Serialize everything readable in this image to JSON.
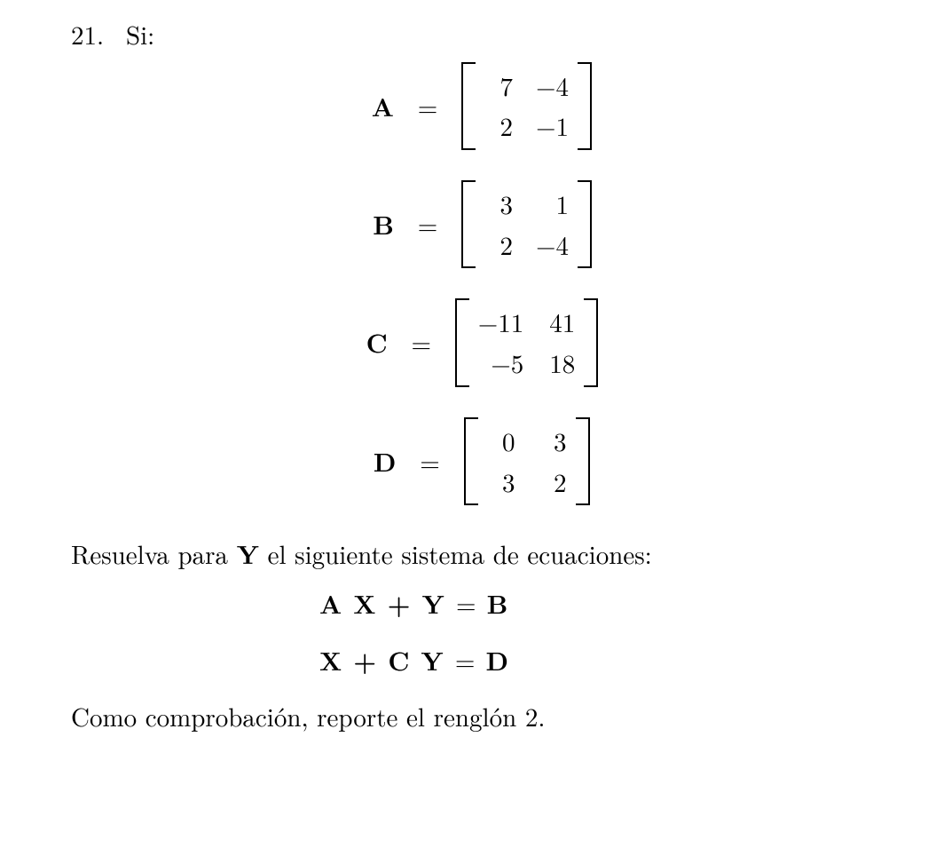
{
  "problem": {
    "number": "21.",
    "lead": "Si:"
  },
  "matrices": {
    "A": {
      "name": "A",
      "cells": [
        "7",
        "−4",
        "2",
        "−1"
      ]
    },
    "B": {
      "name": "B",
      "cells": [
        "3",
        "1",
        "2",
        "−4"
      ]
    },
    "C": {
      "name": "C",
      "cells": [
        "−11",
        "41",
        "−5",
        "18"
      ]
    },
    "D": {
      "name": "D",
      "cells": [
        "0",
        "3",
        "3",
        "2"
      ]
    }
  },
  "equals": "=",
  "text": {
    "solve_for": "Resuelva para ",
    "Y": "Y",
    "solve_after": " el siguiente sistema de ecuaciones:",
    "eq1_lhs": "A X + Y",
    "eq1_rhs": "B",
    "eq2_lhs": "X + C Y",
    "eq2_rhs": "D",
    "check": "Como comprobación, reporte el renglón 2."
  }
}
